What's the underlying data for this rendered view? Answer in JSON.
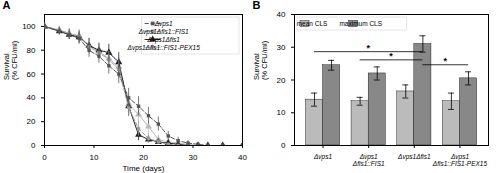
{
  "chart_data": [
    {
      "type": "line",
      "title": "A",
      "xlabel": "Time (days)",
      "ylabel": "Survival\n(% CFU/ml)",
      "xlim": [
        0,
        40
      ],
      "ylim": [
        0,
        110
      ],
      "xticks": [
        0,
        10,
        20,
        30,
        40
      ],
      "yticks": [
        0,
        20,
        40,
        60,
        80,
        100
      ],
      "legend": "upper right",
      "x": [
        0,
        3,
        5,
        7,
        9,
        11,
        13,
        15,
        17,
        19,
        21,
        23,
        25,
        27,
        29,
        31,
        33,
        36,
        40
      ],
      "series": [
        {
          "name": "Δvps1",
          "color": "#555555",
          "marker": "square",
          "line_style": "dashed",
          "values": [
            100,
            96,
            93,
            90,
            80,
            75,
            67,
            60,
            40,
            33,
            25,
            18,
            8,
            4,
            2,
            1,
            0,
            0,
            0
          ],
          "errors": [
            2,
            3,
            4,
            5,
            6,
            6,
            7,
            8,
            8,
            8,
            7,
            6,
            4,
            3,
            2,
            1,
            0,
            0,
            0
          ]
        },
        {
          "name": "Δvps1Δfis1::FIS1",
          "color": "#999999",
          "marker": "square",
          "line_style": "dashed",
          "values": [
            100,
            97,
            94,
            92,
            83,
            78,
            72,
            64,
            32,
            14,
            6,
            3,
            1,
            0,
            0,
            0,
            0,
            0,
            0
          ],
          "errors": [
            2,
            3,
            4,
            5,
            6,
            6,
            7,
            8,
            8,
            6,
            4,
            2,
            1,
            0,
            0,
            0,
            0,
            0,
            0
          ]
        },
        {
          "name": "Δvps1Δfis1",
          "color": "#222222",
          "marker": "triangle",
          "line_style": "solid",
          "values": [
            100,
            96,
            93,
            91,
            84,
            80,
            78,
            70,
            33,
            9,
            5,
            3,
            2,
            1,
            0,
            0,
            0,
            0,
            0
          ],
          "errors": [
            2,
            3,
            4,
            5,
            6,
            6,
            7,
            8,
            8,
            5,
            3,
            2,
            1,
            1,
            0,
            0,
            0,
            0,
            0
          ]
        },
        {
          "name": "Δvps1Δfis1::FIS1-PEX15",
          "color": "#bbbbbb",
          "marker": "triangle",
          "line_style": "solid",
          "values": [
            100,
            97,
            94,
            92,
            84,
            79,
            73,
            66,
            35,
            26,
            16,
            5,
            3,
            2,
            1,
            0,
            0,
            0,
            0
          ],
          "errors": [
            2,
            3,
            4,
            5,
            6,
            6,
            7,
            8,
            8,
            7,
            6,
            4,
            2,
            1,
            1,
            0,
            0,
            0,
            0
          ]
        }
      ]
    },
    {
      "type": "bar",
      "title": "B",
      "ylabel": "Survival\n(% CFU/ml)",
      "categories": [
        "Δvps1",
        "Δvps1\nΔfis1::FIS1",
        "Δvps1Δfis1",
        "Δvps1\nΔfis1::FIS1-PEX15"
      ],
      "ylim": [
        0,
        40
      ],
      "yticks": [
        0,
        10,
        20,
        30,
        40
      ],
      "legend": "upper left",
      "series": [
        {
          "name": "mean CLS",
          "color": "#bbbbbb",
          "values": [
            14.0,
            13.5,
            16.5,
            13.5
          ],
          "errors": [
            2.0,
            1.2,
            2.0,
            2.5
          ]
        },
        {
          "name": "maximum CLS",
          "color": "#888888",
          "values": [
            24.5,
            22.0,
            31.0,
            20.5
          ],
          "errors": [
            1.5,
            2.0,
            2.5,
            2.0
          ]
        }
      ],
      "annotations": [
        {
          "text": "*",
          "y": 28.5,
          "from": {
            "category": "Δvps1",
            "series": "mean CLS"
          },
          "to": {
            "category": "Δvps1Δfis1",
            "series": "maximum CLS"
          }
        },
        {
          "text": "*",
          "y": 26.0,
          "from": {
            "category": "Δvps1\nΔfis1::FIS1",
            "series": "mean CLS"
          },
          "to": {
            "category": "Δvps1Δfis1",
            "series": "maximum CLS"
          }
        },
        {
          "text": "*",
          "y": 24.5,
          "from": {
            "category": "Δvps1Δfis1",
            "series": "maximum CLS"
          },
          "to": {
            "category": "Δvps1\nΔfis1::FIS1-PEX15",
            "series": "maximum CLS"
          }
        }
      ]
    }
  ]
}
